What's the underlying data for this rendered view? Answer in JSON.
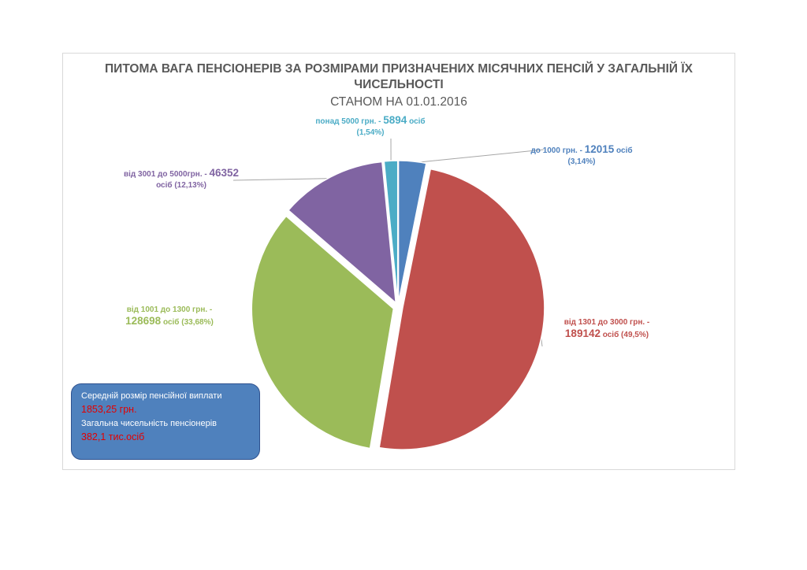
{
  "chart_data": {
    "type": "pie",
    "title": "ПИТОМА ВАГА ПЕНСІОНЕРІВ ЗА РОЗМІРАМИ ПРИЗНАЧЕНИХ МІСЯЧНИХ ПЕНСІЙ У ЗАГАЛЬНІЙ ЇХ ЧИСЕЛЬНОСТІ",
    "subtitle": "СТАНОМ НА 01.01.2016",
    "slices": [
      {
        "name": "до 1000 грн. -",
        "count": 12015,
        "unit": "осіб",
        "percent": 3.14,
        "percent_label": "(3,14%)",
        "color": "#4f81bd",
        "exploded": true
      },
      {
        "name": "від 1301 до 3000 грн. -",
        "count": 189142,
        "unit": "осіб",
        "percent": 49.5,
        "percent_label": "(49,5%)",
        "color": "#c0504d",
        "exploded": true
      },
      {
        "name": "від 1001 до 1300 грн. -",
        "count": 128698,
        "unit": "осіб",
        "percent": 33.68,
        "percent_label": "(33,68%)",
        "color": "#9bbb59",
        "exploded": true
      },
      {
        "name": "від 3001 до 5000грн. -",
        "count": 46352,
        "unit": "осіб",
        "percent": 12.13,
        "percent_label": "(12,13%)",
        "color": "#8064a2",
        "exploded": true
      },
      {
        "name": "понад 5000 грн. -",
        "count": 5894,
        "unit": "осіб",
        "percent": 1.54,
        "percent_label": "(1,54%)",
        "color": "#4bacc6",
        "exploded": true
      }
    ]
  },
  "infobox": {
    "avg_label": "Середній розмір пенсійної виплати",
    "avg_value": "1853,25 грн.",
    "total_label": "Загальна чисельність пенсіонерів",
    "total_value": "382,1 тис.осіб"
  }
}
